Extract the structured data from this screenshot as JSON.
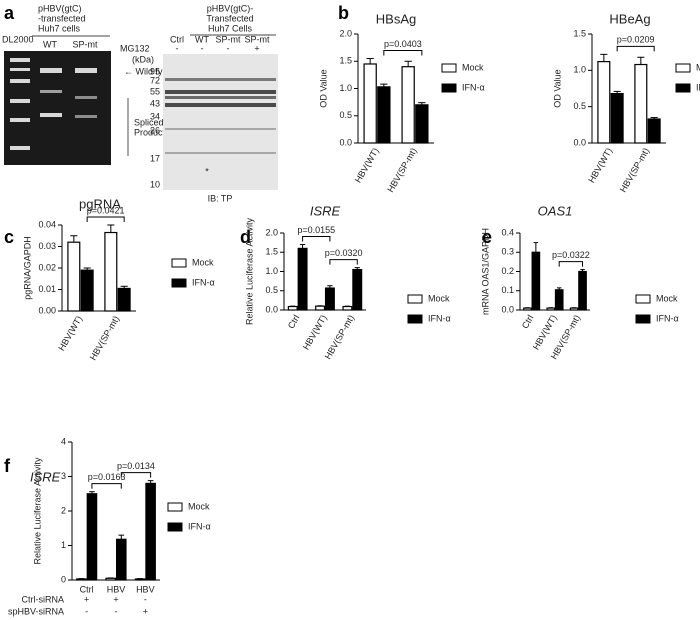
{
  "gel": {
    "panel": "a",
    "ladder": "DL2000",
    "header": [
      "pHBV(gtC)",
      "-transfected",
      "Huh7 cells"
    ],
    "lanes": [
      "WT",
      "SP-mt"
    ],
    "band_label": "← Wild type",
    "bracket_label": [
      "Spliced",
      "Products"
    ]
  },
  "blot": {
    "header": [
      "pHBV(gtC)-",
      "Transfected",
      "Huh7 Cells"
    ],
    "lanes": [
      "Ctrl",
      "WT",
      "SP-mt",
      "SP-mt"
    ],
    "treatment": "MG132",
    "treatment_marks": [
      "-",
      "-",
      "-",
      "+"
    ],
    "unit": "(kDa)",
    "markers": [
      "95",
      "72",
      "55",
      "43",
      "34",
      "26",
      "17",
      "10"
    ],
    "asterisk": "*",
    "footer": "IB: TP"
  },
  "chart_data": [
    {
      "type": "bar",
      "panel": "b",
      "title": "HBsAg",
      "y_label": "OD Value",
      "categories": [
        "HBV(WT)",
        "HBV(SP-mt)"
      ],
      "series": [
        {
          "name": "Mock",
          "color": "#ffffff",
          "values": [
            1.45,
            1.4
          ],
          "errors": [
            0.1,
            0.1
          ]
        },
        {
          "name": "IFN-α",
          "color": "#000000",
          "values": [
            1.03,
            0.7
          ],
          "errors": [
            0.05,
            0.04
          ]
        }
      ],
      "ylim": [
        0,
        2
      ],
      "yticks": [
        {
          "value": 0,
          "label": "0.0"
        },
        {
          "value": 0.5,
          "label": "0.5"
        },
        {
          "value": 1,
          "label": "1.0"
        },
        {
          "value": 1.5,
          "label": "1.5"
        },
        {
          "value": 2,
          "label": "2.0"
        }
      ],
      "annotations": [
        "p=0.0403"
      ]
    },
    {
      "type": "bar",
      "title": "HBeAg",
      "y_label": "OD Value",
      "categories": [
        "HBV(WT)",
        "HBV(SP-mt)"
      ],
      "series": [
        {
          "name": "Mock",
          "color": "#ffffff",
          "values": [
            1.12,
            1.08
          ],
          "errors": [
            0.1,
            0.1
          ]
        },
        {
          "name": "IFN-α",
          "color": "#000000",
          "values": [
            0.68,
            0.33
          ],
          "errors": [
            0.03,
            0.02
          ]
        }
      ],
      "ylim": [
        0,
        1.5
      ],
      "yticks": [
        {
          "value": 0,
          "label": "0.0"
        },
        {
          "value": 0.5,
          "label": "0.5"
        },
        {
          "value": 1,
          "label": "1.0"
        },
        {
          "value": 1.5,
          "label": "1.5"
        }
      ],
      "annotations": [
        "p=0.0209"
      ]
    },
    {
      "type": "bar",
      "panel": "c",
      "title": "pgRNA",
      "y_label": "pgRNA/GAPDH",
      "categories": [
        "HBV(WT)",
        "HBV(SP-mt)"
      ],
      "series": [
        {
          "name": "Mock",
          "color": "#ffffff",
          "values": [
            0.032,
            0.0365
          ],
          "errors": [
            0.003,
            0.0035
          ]
        },
        {
          "name": "IFN-α",
          "color": "#000000",
          "values": [
            0.019,
            0.0105
          ],
          "errors": [
            0.001,
            0.001
          ]
        }
      ],
      "ylim": [
        0,
        0.04
      ],
      "yticks": [
        {
          "value": 0,
          "label": "0.00"
        },
        0.01,
        0.02,
        0.03,
        0.04
      ],
      "annotations": [
        "p=0.0421"
      ]
    },
    {
      "type": "bar",
      "panel": "d",
      "title": "ISRE",
      "title_style": "italic",
      "y_label": "Relative Luciferase Activity",
      "categories": [
        "Ctrl",
        "HBV(WT)",
        "HBV(SP-mt)"
      ],
      "series": [
        {
          "name": "Mock",
          "color": "#ffffff",
          "values": [
            0.09,
            0.1,
            0.09
          ],
          "errors": [
            0.01,
            0.01,
            0.01
          ]
        },
        {
          "name": "IFN-α",
          "color": "#000000",
          "values": [
            1.6,
            0.57,
            1.05
          ],
          "errors": [
            0.1,
            0.06,
            0.05
          ]
        }
      ],
      "ylim": [
        0,
        2
      ],
      "yticks": [
        {
          "value": 0,
          "label": "0.0"
        },
        {
          "value": 0.5,
          "label": "0.5"
        },
        {
          "value": 1,
          "label": "1.0"
        },
        {
          "value": 1.5,
          "label": "1.5"
        },
        {
          "value": 2,
          "label": "2.0"
        }
      ],
      "annotations": [
        "p=0.0155",
        "p=0.0320"
      ]
    },
    {
      "type": "bar",
      "panel": "e",
      "title": "OAS1",
      "title_style": "italic",
      "y_label": "mRNA OAS1/GAPDH",
      "categories": [
        "Ctrl",
        "HBV(WT)",
        "HBV(SP-mt)"
      ],
      "series": [
        {
          "name": "Mock",
          "color": "#ffffff",
          "values": [
            0.01,
            0.01,
            0.01
          ],
          "errors": [
            0.002,
            0.002,
            0.002
          ]
        },
        {
          "name": "IFN-α",
          "color": "#000000",
          "values": [
            0.3,
            0.105,
            0.2
          ],
          "errors": [
            0.05,
            0.01,
            0.01
          ]
        }
      ],
      "ylim": [
        0,
        0.4
      ],
      "yticks": [
        {
          "value": 0,
          "label": "0.0"
        },
        0.1,
        0.2,
        0.3,
        0.4
      ],
      "annotations": [
        "p=0.0322"
      ]
    },
    {
      "type": "bar",
      "panel": "f",
      "title": "ISRE",
      "title_style": "italic",
      "y_label": "Relative Luciferase Activity",
      "categories": [
        "Ctrl",
        "HBV",
        "HBV"
      ],
      "series": [
        {
          "name": "Mock",
          "color": "#ffffff",
          "values": [
            0.03,
            0.05,
            0.03
          ],
          "errors": [
            0.01,
            0.01,
            0.01
          ]
        },
        {
          "name": "IFN-α",
          "color": "#000000",
          "values": [
            2.5,
            1.18,
            2.8
          ],
          "errors": [
            0.06,
            0.12,
            0.08
          ]
        }
      ],
      "ylim": [
        0,
        4
      ],
      "yticks": [
        0,
        1,
        2,
        3,
        4
      ],
      "annotations": [
        "p=0.0163",
        "p=0.0134"
      ],
      "rows": [
        {
          "label": "Ctrl-siRNA",
          "marks": [
            "+",
            "+",
            "-"
          ]
        },
        {
          "label": "spHBV-siRNA",
          "marks": [
            "-",
            "-",
            "+"
          ]
        }
      ]
    }
  ]
}
